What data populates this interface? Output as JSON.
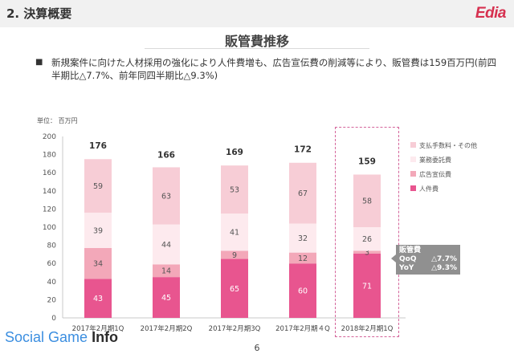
{
  "header": {
    "section_title": "2. 決算概要",
    "logo_text": "Edia"
  },
  "slide_title": "販管費推移",
  "summary": "新規案件に向けた人材採用の強化により人件費増も、広告宣伝費の削減等により、販管費は159百万円(前四半期比△7.7%、前年同四半期比△9.3%)",
  "unit_label": "単位： 百万円",
  "chart_data": {
    "type": "bar",
    "stacked": true,
    "categories": [
      "2017年2月期1Q",
      "2017年2月期2Q",
      "2017年2月期3Q",
      "2017年2月期４Q",
      "2018年2月期1Q"
    ],
    "series": [
      {
        "name": "人件費",
        "values": [
          43,
          45,
          65,
          60,
          71
        ],
        "color": "#e8558f"
      },
      {
        "name": "広告宣伝費",
        "values": [
          34,
          14,
          9,
          12,
          3
        ],
        "color": "#f3a8b9"
      },
      {
        "name": "業務委託費",
        "values": [
          39,
          44,
          41,
          32,
          26
        ],
        "color": "#fdeaee"
      },
      {
        "name": "支払手数料・その他",
        "values": [
          59,
          63,
          53,
          67,
          58
        ],
        "color": "#f7cdd6"
      }
    ],
    "totals": [
      176,
      166,
      169,
      172,
      159
    ],
    "ylim": [
      0,
      200
    ],
    "yticks": [
      0,
      20,
      40,
      60,
      80,
      100,
      120,
      140,
      160,
      180,
      200
    ],
    "legend_position": "right",
    "grid": false
  },
  "callout": {
    "title": "販管費",
    "qoq_label": "QoQ",
    "qoq_value": "△7.7%",
    "yoy_label": "YoY",
    "yoy_value": "△9.3%"
  },
  "footer": {
    "brand_light": "Social Game",
    "brand_bold": "Info",
    "page_number": "6"
  }
}
